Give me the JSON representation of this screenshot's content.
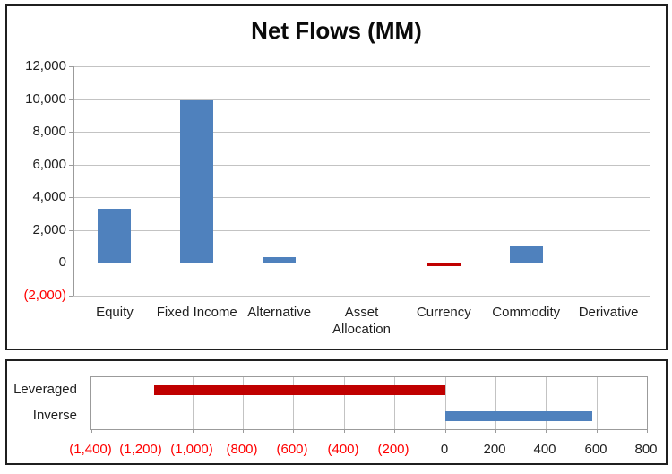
{
  "colors": {
    "positive_bar": "#4F81BD",
    "negative_bar": "#C00000",
    "negative_label": "#FF0000",
    "text": "#1F1F1F",
    "gridline": "#C3C3C3",
    "axis": "#9B9B9B",
    "frame_border": "#1F1F1F"
  },
  "chart_data": [
    {
      "type": "bar",
      "title": "Net Flows (MM)",
      "categories": [
        "Equity",
        "Fixed Income",
        "Alternative",
        "Asset Allocation",
        "Currency",
        "Commodity",
        "Derivative"
      ],
      "values": [
        3300,
        9900,
        350,
        0,
        -200,
        1000,
        0
      ],
      "xlabel": "",
      "ylabel": "",
      "ylim": [
        -2000,
        12000
      ],
      "ytick_step": 2000,
      "ytick_labels": [
        "12,000",
        "10,000",
        "8,000",
        "6,000",
        "4,000",
        "2,000",
        "0",
        "(2,000)"
      ],
      "grid": true,
      "legend": "none",
      "bar_color_positive": "#4F81BD",
      "bar_color_negative": "#C00000",
      "negative_tick_style": "red-parentheses"
    },
    {
      "type": "bar-horizontal",
      "title": "",
      "categories": [
        "Leveraged",
        "Inverse"
      ],
      "values": [
        -1150,
        585
      ],
      "series_colors": [
        "#C00000",
        "#4F81BD"
      ],
      "xlim": [
        -1400,
        800
      ],
      "xtick_step": 200,
      "xtick_labels": [
        "(1,400)",
        "(1,200)",
        "(1,000)",
        "(800)",
        "(600)",
        "(400)",
        "(200)",
        "0",
        "200",
        "400",
        "600",
        "800"
      ],
      "grid": true,
      "legend": "none",
      "negative_tick_style": "red-parentheses"
    }
  ]
}
